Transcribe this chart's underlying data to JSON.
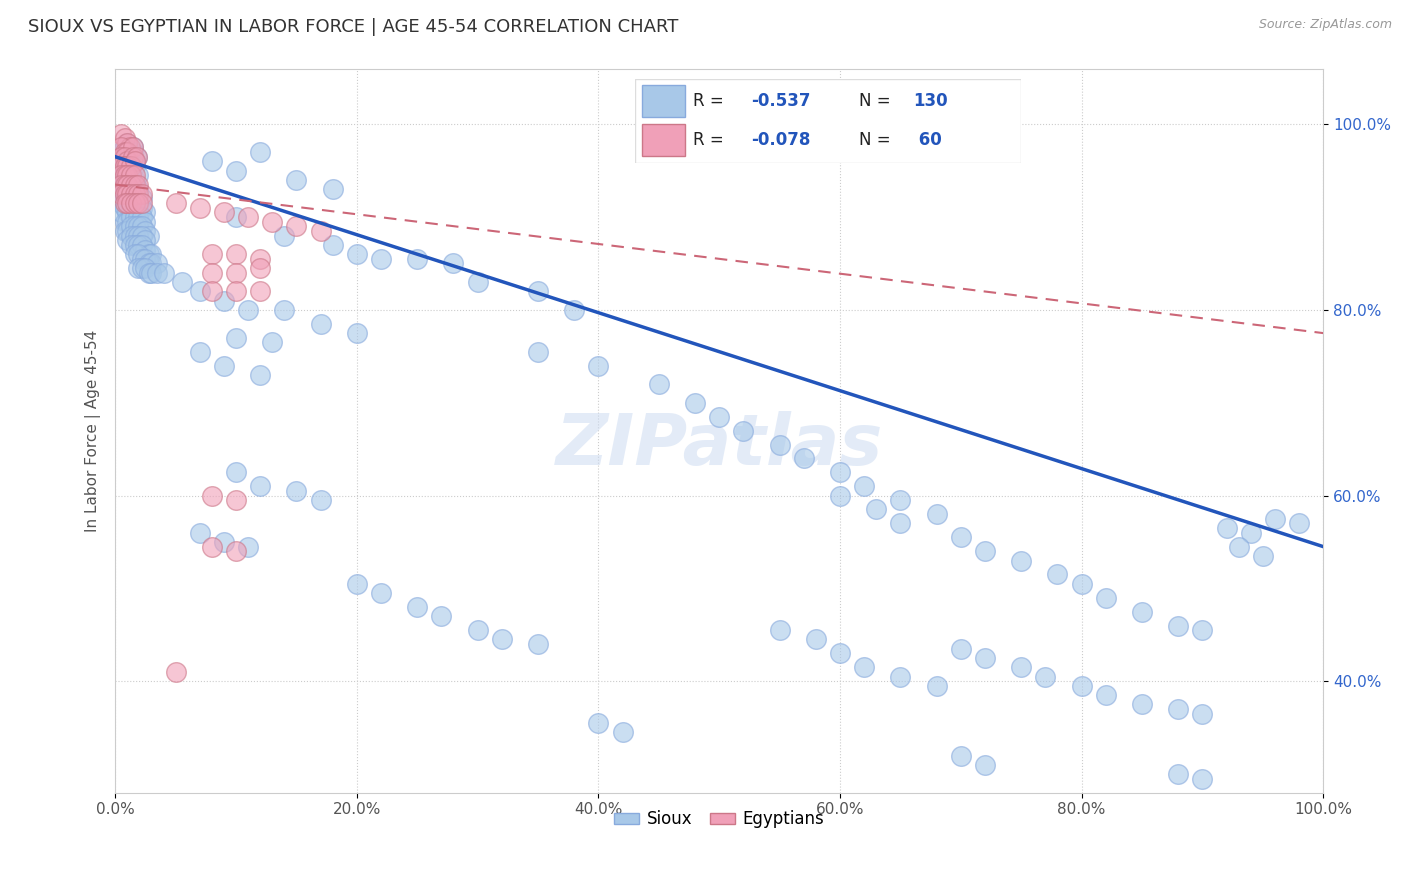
{
  "title": "SIOUX VS EGYPTIAN IN LABOR FORCE | AGE 45-54 CORRELATION CHART",
  "source_text": "Source: ZipAtlas.com",
  "ylabel": "In Labor Force | Age 45-54",
  "xlim": [
    0.0,
    1.0
  ],
  "ylim": [
    0.28,
    1.06
  ],
  "xtick_vals": [
    0.0,
    0.2,
    0.4,
    0.6,
    0.8,
    1.0
  ],
  "xtick_labels": [
    "0.0%",
    "20.0%",
    "40.0%",
    "60.0%",
    "80.0%",
    "100.0%"
  ],
  "ytick_vals": [
    0.4,
    0.6,
    0.8,
    1.0
  ],
  "ytick_labels": [
    "40.0%",
    "60.0%",
    "80.0%",
    "100.0%"
  ],
  "sioux_color": "#a8c8e8",
  "egypt_color": "#f0a0b8",
  "sioux_line_color": "#2255bb",
  "egypt_line_color": "#cc6677",
  "background_color": "#ffffff",
  "grid_color": "#cccccc",
  "sioux_scatter": [
    [
      0.005,
      0.97
    ],
    [
      0.008,
      0.975
    ],
    [
      0.01,
      0.98
    ],
    [
      0.012,
      0.97
    ],
    [
      0.015,
      0.975
    ],
    [
      0.005,
      0.965
    ],
    [
      0.008,
      0.965
    ],
    [
      0.01,
      0.96
    ],
    [
      0.015,
      0.97
    ],
    [
      0.018,
      0.965
    ],
    [
      0.005,
      0.955
    ],
    [
      0.008,
      0.96
    ],
    [
      0.01,
      0.955
    ],
    [
      0.013,
      0.96
    ],
    [
      0.016,
      0.96
    ],
    [
      0.005,
      0.945
    ],
    [
      0.008,
      0.95
    ],
    [
      0.01,
      0.945
    ],
    [
      0.013,
      0.95
    ],
    [
      0.016,
      0.955
    ],
    [
      0.005,
      0.935
    ],
    [
      0.008,
      0.94
    ],
    [
      0.01,
      0.935
    ],
    [
      0.013,
      0.94
    ],
    [
      0.016,
      0.94
    ],
    [
      0.019,
      0.945
    ],
    [
      0.005,
      0.925
    ],
    [
      0.008,
      0.93
    ],
    [
      0.01,
      0.925
    ],
    [
      0.013,
      0.93
    ],
    [
      0.016,
      0.93
    ],
    [
      0.019,
      0.93
    ],
    [
      0.005,
      0.915
    ],
    [
      0.008,
      0.92
    ],
    [
      0.01,
      0.915
    ],
    [
      0.013,
      0.92
    ],
    [
      0.016,
      0.92
    ],
    [
      0.019,
      0.92
    ],
    [
      0.022,
      0.92
    ],
    [
      0.005,
      0.905
    ],
    [
      0.008,
      0.91
    ],
    [
      0.01,
      0.905
    ],
    [
      0.013,
      0.91
    ],
    [
      0.016,
      0.91
    ],
    [
      0.019,
      0.91
    ],
    [
      0.022,
      0.91
    ],
    [
      0.025,
      0.905
    ],
    [
      0.008,
      0.895
    ],
    [
      0.01,
      0.895
    ],
    [
      0.013,
      0.9
    ],
    [
      0.016,
      0.9
    ],
    [
      0.019,
      0.9
    ],
    [
      0.022,
      0.9
    ],
    [
      0.025,
      0.895
    ],
    [
      0.008,
      0.885
    ],
    [
      0.01,
      0.885
    ],
    [
      0.013,
      0.89
    ],
    [
      0.016,
      0.89
    ],
    [
      0.019,
      0.89
    ],
    [
      0.022,
      0.89
    ],
    [
      0.025,
      0.885
    ],
    [
      0.028,
      0.88
    ],
    [
      0.01,
      0.875
    ],
    [
      0.013,
      0.88
    ],
    [
      0.016,
      0.88
    ],
    [
      0.019,
      0.88
    ],
    [
      0.022,
      0.88
    ],
    [
      0.025,
      0.875
    ],
    [
      0.013,
      0.87
    ],
    [
      0.016,
      0.87
    ],
    [
      0.019,
      0.87
    ],
    [
      0.022,
      0.87
    ],
    [
      0.025,
      0.865
    ],
    [
      0.028,
      0.86
    ],
    [
      0.03,
      0.86
    ],
    [
      0.016,
      0.86
    ],
    [
      0.019,
      0.86
    ],
    [
      0.022,
      0.855
    ],
    [
      0.025,
      0.855
    ],
    [
      0.028,
      0.85
    ],
    [
      0.03,
      0.85
    ],
    [
      0.035,
      0.85
    ],
    [
      0.019,
      0.845
    ],
    [
      0.022,
      0.845
    ],
    [
      0.025,
      0.845
    ],
    [
      0.028,
      0.84
    ],
    [
      0.03,
      0.84
    ],
    [
      0.035,
      0.84
    ],
    [
      0.04,
      0.84
    ],
    [
      0.08,
      0.96
    ],
    [
      0.1,
      0.95
    ],
    [
      0.12,
      0.97
    ],
    [
      0.15,
      0.94
    ],
    [
      0.18,
      0.93
    ],
    [
      0.1,
      0.9
    ],
    [
      0.14,
      0.88
    ],
    [
      0.18,
      0.87
    ],
    [
      0.2,
      0.86
    ],
    [
      0.22,
      0.855
    ],
    [
      0.25,
      0.855
    ],
    [
      0.28,
      0.85
    ],
    [
      0.055,
      0.83
    ],
    [
      0.07,
      0.82
    ],
    [
      0.09,
      0.81
    ],
    [
      0.11,
      0.8
    ],
    [
      0.14,
      0.8
    ],
    [
      0.17,
      0.785
    ],
    [
      0.2,
      0.775
    ],
    [
      0.1,
      0.77
    ],
    [
      0.13,
      0.765
    ],
    [
      0.07,
      0.755
    ],
    [
      0.09,
      0.74
    ],
    [
      0.12,
      0.73
    ],
    [
      0.3,
      0.83
    ],
    [
      0.35,
      0.82
    ],
    [
      0.38,
      0.8
    ],
    [
      0.35,
      0.755
    ],
    [
      0.4,
      0.74
    ],
    [
      0.45,
      0.72
    ],
    [
      0.48,
      0.7
    ],
    [
      0.5,
      0.685
    ],
    [
      0.52,
      0.67
    ],
    [
      0.55,
      0.655
    ],
    [
      0.57,
      0.64
    ],
    [
      0.6,
      0.625
    ],
    [
      0.62,
      0.61
    ],
    [
      0.65,
      0.595
    ],
    [
      0.68,
      0.58
    ],
    [
      0.6,
      0.6
    ],
    [
      0.63,
      0.585
    ],
    [
      0.65,
      0.57
    ],
    [
      0.7,
      0.555
    ],
    [
      0.72,
      0.54
    ],
    [
      0.75,
      0.53
    ],
    [
      0.78,
      0.515
    ],
    [
      0.8,
      0.505
    ],
    [
      0.82,
      0.49
    ],
    [
      0.85,
      0.475
    ],
    [
      0.88,
      0.46
    ],
    [
      0.9,
      0.455
    ],
    [
      0.92,
      0.565
    ],
    [
      0.94,
      0.56
    ],
    [
      0.96,
      0.575
    ],
    [
      0.98,
      0.57
    ],
    [
      0.93,
      0.545
    ],
    [
      0.95,
      0.535
    ],
    [
      0.1,
      0.625
    ],
    [
      0.12,
      0.61
    ],
    [
      0.15,
      0.605
    ],
    [
      0.17,
      0.595
    ],
    [
      0.07,
      0.56
    ],
    [
      0.09,
      0.55
    ],
    [
      0.11,
      0.545
    ],
    [
      0.2,
      0.505
    ],
    [
      0.22,
      0.495
    ],
    [
      0.25,
      0.48
    ],
    [
      0.27,
      0.47
    ],
    [
      0.3,
      0.455
    ],
    [
      0.32,
      0.445
    ],
    [
      0.35,
      0.44
    ],
    [
      0.55,
      0.455
    ],
    [
      0.58,
      0.445
    ],
    [
      0.6,
      0.43
    ],
    [
      0.62,
      0.415
    ],
    [
      0.65,
      0.405
    ],
    [
      0.68,
      0.395
    ],
    [
      0.7,
      0.435
    ],
    [
      0.72,
      0.425
    ],
    [
      0.75,
      0.415
    ],
    [
      0.77,
      0.405
    ],
    [
      0.8,
      0.395
    ],
    [
      0.82,
      0.385
    ],
    [
      0.85,
      0.375
    ],
    [
      0.88,
      0.37
    ],
    [
      0.9,
      0.365
    ],
    [
      0.4,
      0.355
    ],
    [
      0.42,
      0.345
    ],
    [
      0.7,
      0.32
    ],
    [
      0.72,
      0.31
    ],
    [
      0.88,
      0.3
    ],
    [
      0.9,
      0.295
    ]
  ],
  "egypt_scatter": [
    [
      0.005,
      0.99
    ],
    [
      0.008,
      0.985
    ],
    [
      0.01,
      0.98
    ],
    [
      0.012,
      0.975
    ],
    [
      0.005,
      0.975
    ],
    [
      0.008,
      0.97
    ],
    [
      0.01,
      0.97
    ],
    [
      0.015,
      0.975
    ],
    [
      0.005,
      0.965
    ],
    [
      0.008,
      0.965
    ],
    [
      0.01,
      0.96
    ],
    [
      0.015,
      0.965
    ],
    [
      0.018,
      0.965
    ],
    [
      0.005,
      0.955
    ],
    [
      0.008,
      0.955
    ],
    [
      0.01,
      0.955
    ],
    [
      0.013,
      0.955
    ],
    [
      0.016,
      0.96
    ],
    [
      0.005,
      0.945
    ],
    [
      0.008,
      0.945
    ],
    [
      0.01,
      0.945
    ],
    [
      0.013,
      0.945
    ],
    [
      0.016,
      0.945
    ],
    [
      0.005,
      0.935
    ],
    [
      0.008,
      0.935
    ],
    [
      0.01,
      0.935
    ],
    [
      0.013,
      0.935
    ],
    [
      0.016,
      0.935
    ],
    [
      0.019,
      0.935
    ],
    [
      0.005,
      0.925
    ],
    [
      0.008,
      0.925
    ],
    [
      0.01,
      0.925
    ],
    [
      0.013,
      0.925
    ],
    [
      0.016,
      0.925
    ],
    [
      0.019,
      0.925
    ],
    [
      0.022,
      0.925
    ],
    [
      0.008,
      0.915
    ],
    [
      0.01,
      0.915
    ],
    [
      0.013,
      0.915
    ],
    [
      0.016,
      0.915
    ],
    [
      0.019,
      0.915
    ],
    [
      0.022,
      0.915
    ],
    [
      0.05,
      0.915
    ],
    [
      0.07,
      0.91
    ],
    [
      0.09,
      0.905
    ],
    [
      0.11,
      0.9
    ],
    [
      0.13,
      0.895
    ],
    [
      0.15,
      0.89
    ],
    [
      0.17,
      0.885
    ],
    [
      0.08,
      0.86
    ],
    [
      0.1,
      0.86
    ],
    [
      0.12,
      0.855
    ],
    [
      0.08,
      0.84
    ],
    [
      0.1,
      0.84
    ],
    [
      0.12,
      0.845
    ],
    [
      0.08,
      0.82
    ],
    [
      0.1,
      0.82
    ],
    [
      0.12,
      0.82
    ],
    [
      0.08,
      0.6
    ],
    [
      0.1,
      0.595
    ],
    [
      0.08,
      0.545
    ],
    [
      0.1,
      0.54
    ],
    [
      0.05,
      0.41
    ]
  ],
  "sioux_trendline": [
    [
      0.0,
      0.965
    ],
    [
      1.0,
      0.545
    ]
  ],
  "egypt_trendline": [
    [
      0.0,
      0.935
    ],
    [
      1.0,
      0.775
    ]
  ]
}
